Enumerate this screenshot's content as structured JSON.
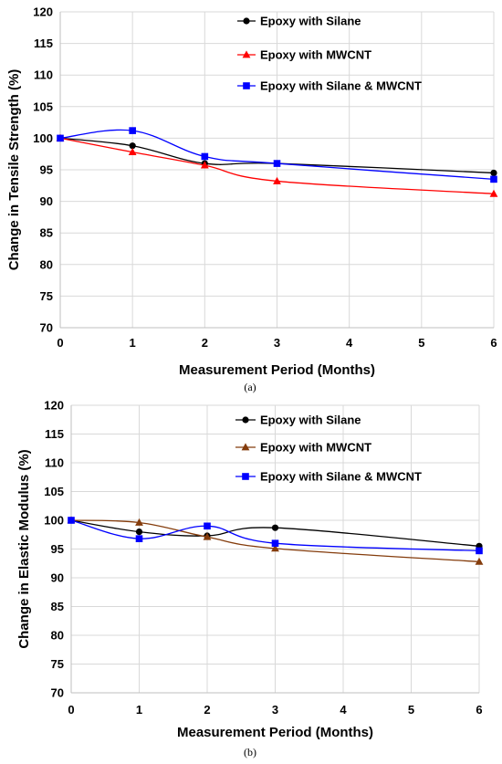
{
  "chart_data": [
    {
      "type": "line",
      "caption": "(a)",
      "xlabel": "Measurement Period (Months)",
      "ylabel": "Change in Tensile Strength (%)",
      "xlim": [
        0,
        6
      ],
      "ylim": [
        70,
        120
      ],
      "xticks": [
        0,
        1,
        2,
        3,
        4,
        5,
        6
      ],
      "yticks": [
        70,
        75,
        80,
        85,
        90,
        95,
        100,
        105,
        110,
        115,
        120
      ],
      "grid": true,
      "legend_position": "top-right",
      "series": [
        {
          "name": "Epoxy with Silane",
          "color": "#000000",
          "marker": "circle",
          "x": [
            0,
            1,
            2,
            3,
            6
          ],
          "y": [
            100,
            98.8,
            96.0,
            96.0,
            94.5
          ]
        },
        {
          "name": "Epoxy with MWCNT",
          "color": "#ff0000",
          "marker": "triangle",
          "x": [
            0,
            1,
            2,
            3,
            6
          ],
          "y": [
            100,
            97.8,
            95.7,
            93.2,
            91.2
          ]
        },
        {
          "name": "Epoxy with Silane & MWCNT",
          "color": "#0000ff",
          "marker": "square",
          "x": [
            0,
            1,
            2,
            3,
            6
          ],
          "y": [
            100,
            101.2,
            97.1,
            96.0,
            93.5
          ]
        }
      ]
    },
    {
      "type": "line",
      "caption": "(b)",
      "xlabel": "Measurement Period (Months)",
      "ylabel": "Change in Elastic Modulus (%)",
      "xlim": [
        0,
        6
      ],
      "ylim": [
        70,
        120
      ],
      "xticks": [
        0,
        1,
        2,
        3,
        4,
        5,
        6
      ],
      "yticks": [
        70,
        75,
        80,
        85,
        90,
        95,
        100,
        105,
        110,
        115,
        120
      ],
      "grid": true,
      "legend_position": "top-right",
      "series": [
        {
          "name": "Epoxy with Silane",
          "color": "#000000",
          "marker": "circle",
          "x": [
            0,
            1,
            2,
            3,
            6
          ],
          "y": [
            100,
            98.0,
            97.3,
            98.7,
            95.5
          ]
        },
        {
          "name": "Epoxy with MWCNT",
          "color": "#843c0c",
          "marker": "triangle",
          "x": [
            0,
            1,
            2,
            3,
            6
          ],
          "y": [
            100,
            99.6,
            97.1,
            95.1,
            92.8
          ]
        },
        {
          "name": "Epoxy with Silane & MWCNT",
          "color": "#0000ff",
          "marker": "square",
          "x": [
            0,
            1,
            2,
            3,
            6
          ],
          "y": [
            100,
            96.8,
            99.0,
            96.0,
            94.7
          ]
        }
      ]
    }
  ]
}
